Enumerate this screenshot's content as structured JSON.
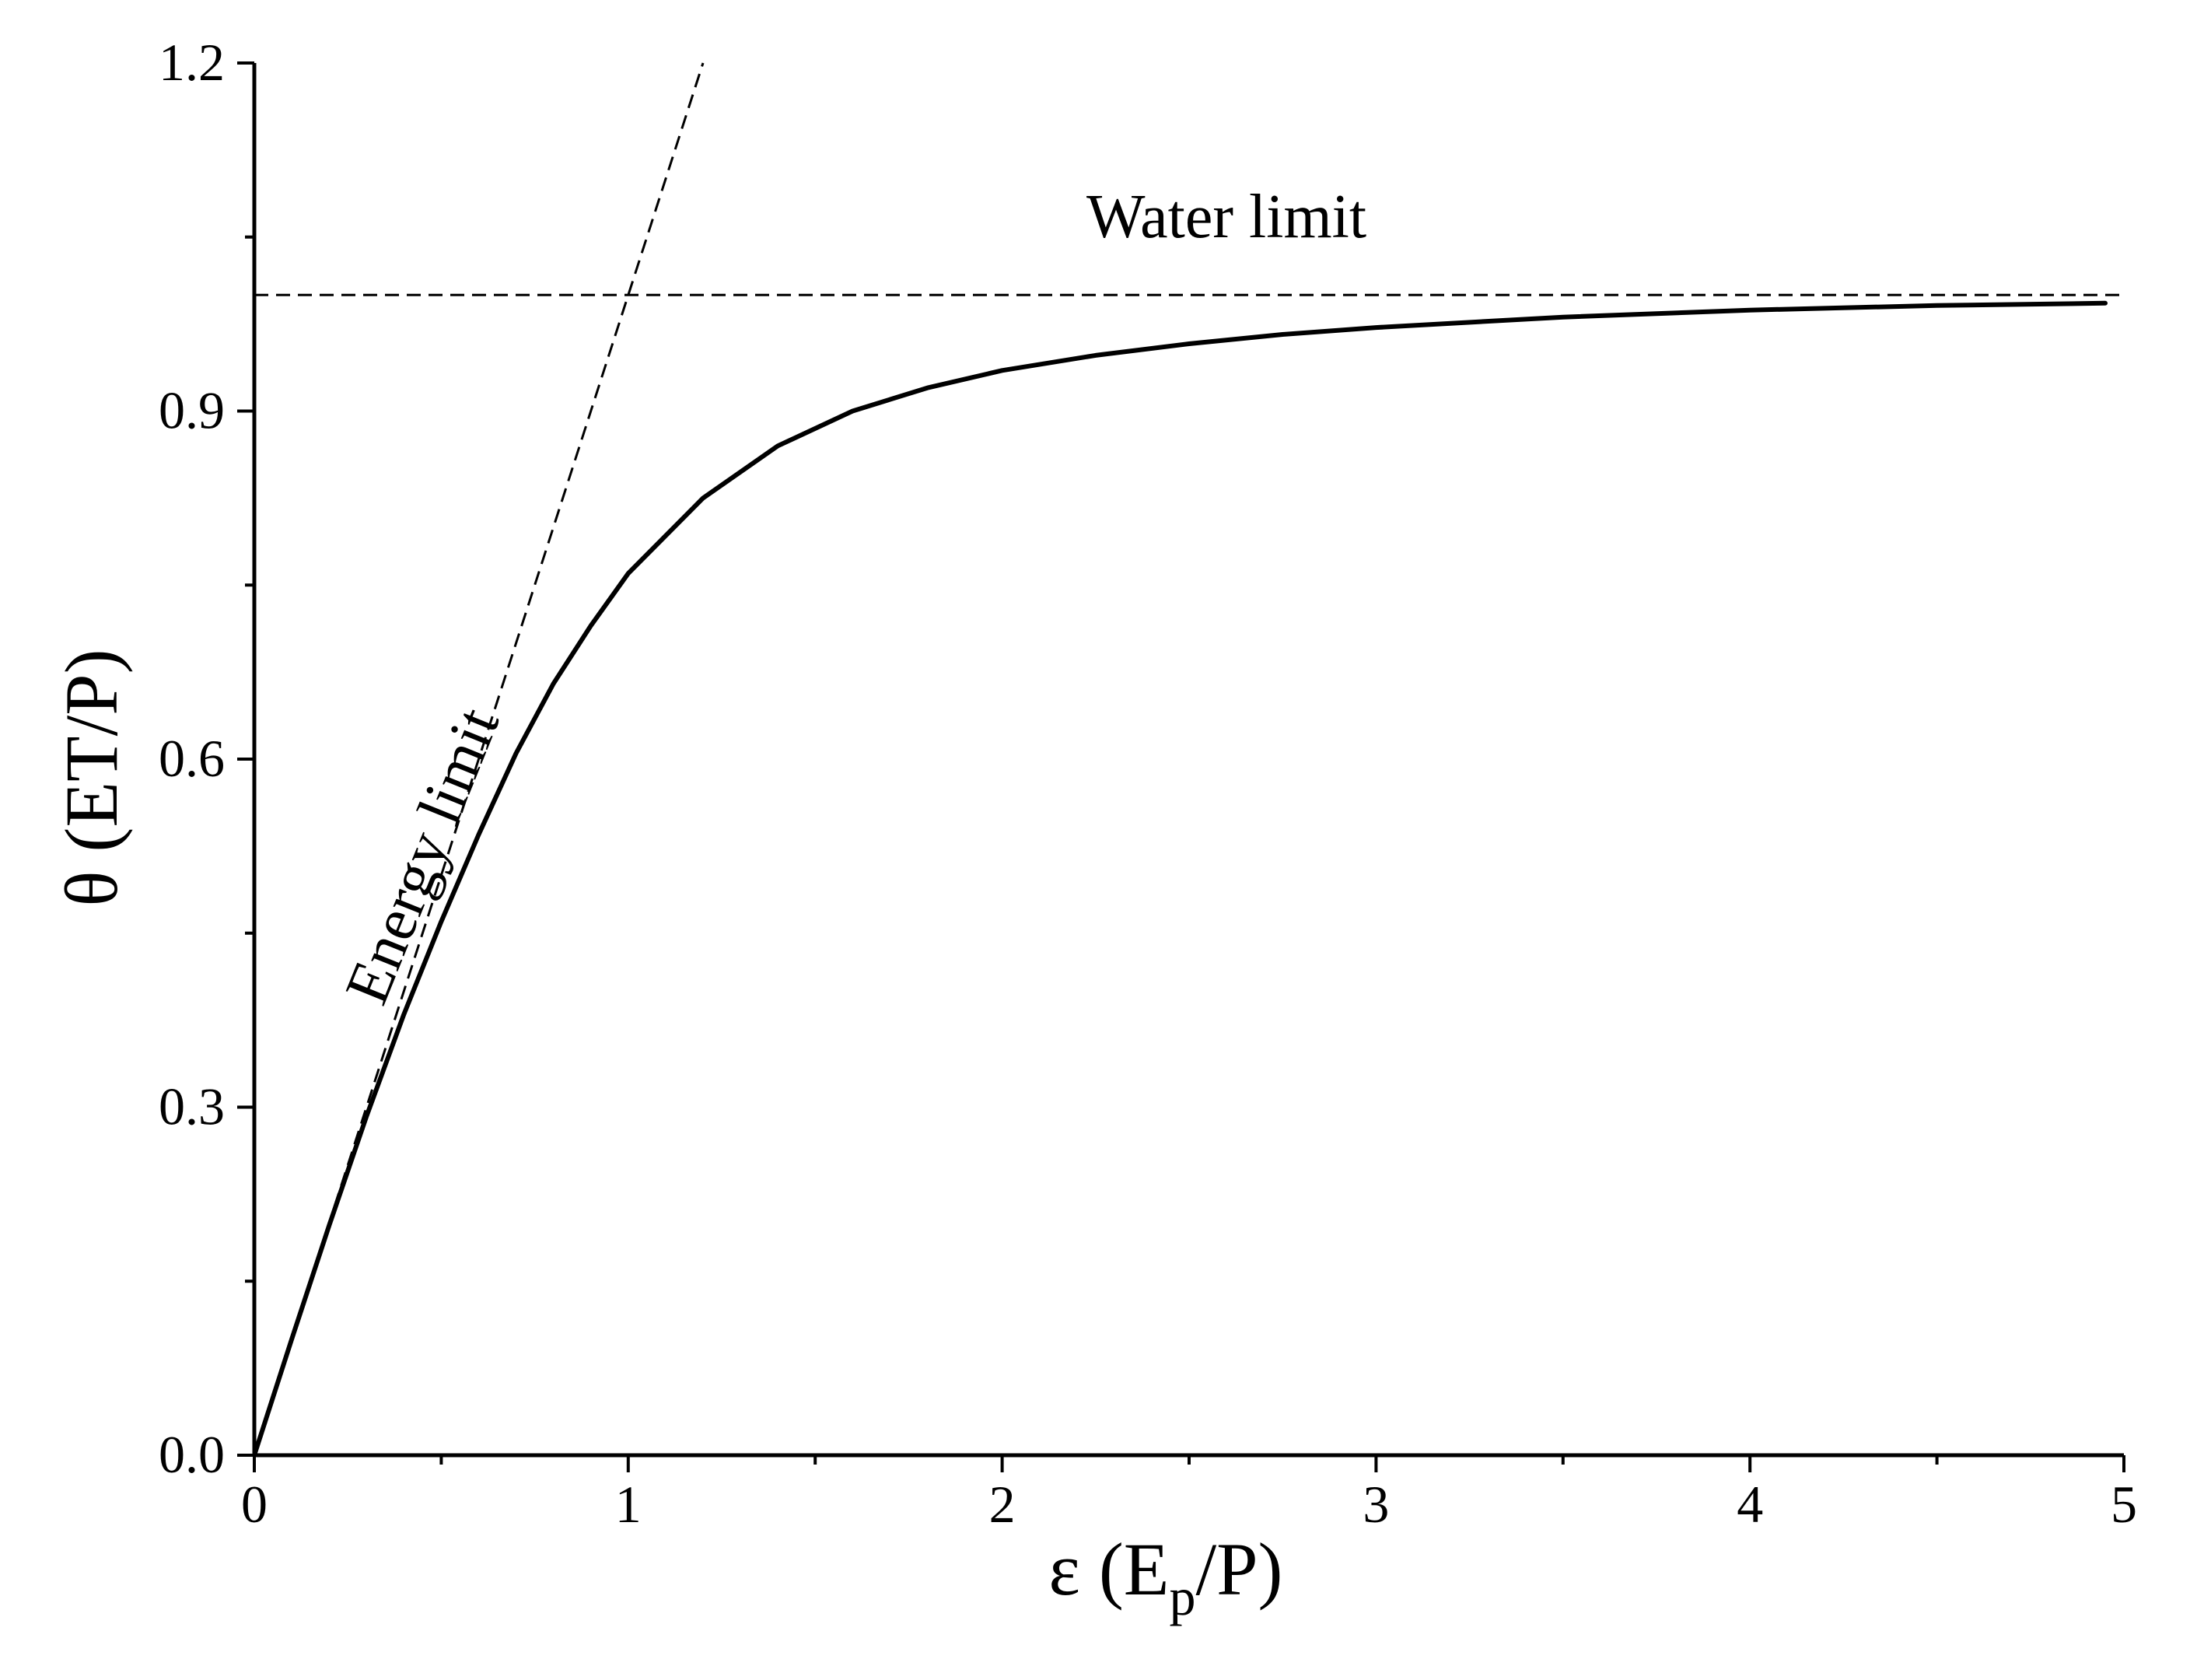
{
  "chart_data": {
    "type": "line",
    "xlabel": {
      "symbol": "ε",
      "open": " (E",
      "sub": "p",
      "close": "/P)"
    },
    "ylabel": "θ (ET/P)",
    "xlim": [
      0,
      5
    ],
    "ylim": [
      0,
      1.2
    ],
    "xticks": [
      0,
      1,
      2,
      3,
      4,
      5
    ],
    "xtick_labels": [
      "0",
      "1",
      "2",
      "3",
      "4",
      "5"
    ],
    "yticks": [
      0.0,
      0.3,
      0.6,
      0.9,
      1.2
    ],
    "ytick_labels": [
      "0.0",
      "0.3",
      "0.6",
      "0.9",
      "1.2"
    ],
    "grid": false,
    "series": [
      {
        "style": "solid",
        "color": "#000000",
        "x": [
          0,
          0.1,
          0.2,
          0.3,
          0.4,
          0.5,
          0.6,
          0.7,
          0.8,
          0.9,
          1.0,
          1.2,
          1.4,
          1.6,
          1.8,
          2.0,
          2.25,
          2.5,
          2.75,
          3.0,
          3.5,
          4.0,
          4.5,
          4.95
        ],
        "y": [
          0,
          0.1,
          0.198,
          0.292,
          0.38,
          0.46,
          0.535,
          0.605,
          0.665,
          0.715,
          0.76,
          0.825,
          0.87,
          0.9,
          0.92,
          0.935,
          0.948,
          0.958,
          0.966,
          0.972,
          0.981,
          0.987,
          0.991,
          0.993
        ]
      },
      {
        "style": "dashed",
        "color": "#000000",
        "x": [
          0,
          1.2
        ],
        "y": [
          0,
          1.2
        ]
      },
      {
        "style": "dashed",
        "color": "#000000",
        "x": [
          0,
          5
        ],
        "y": [
          1.0,
          1.0
        ]
      }
    ],
    "annotations": [
      {
        "text": "Water limit",
        "x": 2.6,
        "y": 1.05,
        "rotation": 0
      },
      {
        "text": "Energy limit",
        "x": 0.5,
        "y": 0.51,
        "rotation": -68
      }
    ]
  }
}
